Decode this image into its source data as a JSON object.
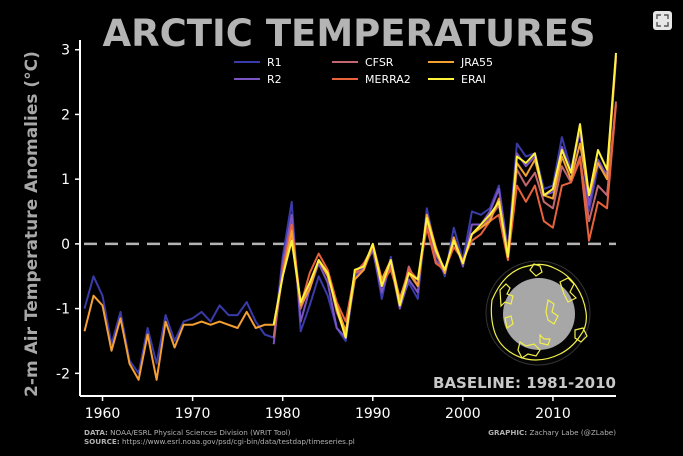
{
  "chart_data": {
    "type": "line",
    "title": "ARCTIC TEMPERATURES",
    "ylabel": "2-m Air Temperature Anomalies (°C)",
    "xlabel": "",
    "xlim": [
      1957.5,
      2017
    ],
    "ylim": [
      -2.35,
      3.15
    ],
    "xticks": [
      1960,
      1970,
      1980,
      1990,
      2000,
      2010
    ],
    "yticks": [
      -2,
      -1,
      0,
      1,
      2,
      3
    ],
    "zero_line": 0,
    "annotation": "BASELINE: 1981-2010",
    "legend": [
      "R1",
      "CFSR",
      "JRA55",
      "R2",
      "MERRA2",
      "ERAI"
    ],
    "series": [
      {
        "name": "R1",
        "color": "#3a3aa8",
        "x_start": 1958,
        "values": [
          -1.0,
          -0.5,
          -0.8,
          -1.55,
          -1.05,
          -1.8,
          -2.0,
          -1.3,
          -1.85,
          -1.1,
          -1.5,
          -1.2,
          -1.15,
          -1.05,
          -1.2,
          -0.95,
          -1.1,
          -1.1,
          -0.9,
          -1.2,
          -1.4,
          -1.45,
          -0.2,
          0.65,
          -1.35,
          -0.95,
          -0.5,
          -0.8,
          -1.3,
          -1.5,
          -0.5,
          -0.3,
          -0.05,
          -0.85,
          -0.2,
          -0.9,
          -0.6,
          -0.85,
          0.55,
          -0.1,
          -0.5,
          0.25,
          -0.25,
          0.5,
          0.45,
          0.55,
          0.9,
          -0.1,
          1.55,
          1.35,
          1.4,
          0.85,
          0.9,
          1.65,
          1.15,
          1.8,
          0.5,
          1.2,
          1.1,
          2.95
        ]
      },
      {
        "name": "R2",
        "color": "#7b54c4",
        "x_start": 1979,
        "values": [
          -1.55,
          -0.3,
          0.45,
          -1.2,
          -0.7,
          -0.3,
          -0.6,
          -1.3,
          -1.45,
          -0.55,
          -0.35,
          -0.1,
          -0.75,
          -0.3,
          -1.0,
          -0.55,
          -0.75,
          0.45,
          -0.25,
          -0.45,
          0.1,
          -0.35,
          0.3,
          0.3,
          0.5,
          0.85,
          -0.15,
          1.4,
          1.2,
          1.35,
          0.75,
          0.8,
          1.5,
          1.1,
          1.75,
          0.6,
          1.3,
          1.05,
          2.85
        ]
      },
      {
        "name": "CFSR",
        "color": "#c26670",
        "x_start": 1979,
        "values": [
          -1.45,
          -0.45,
          0.1,
          -1.0,
          -0.65,
          -0.25,
          -0.45,
          -1.05,
          -1.4,
          -0.45,
          -0.4,
          -0.05,
          -0.65,
          -0.35,
          -0.95,
          -0.35,
          -0.65,
          0.35,
          -0.15,
          -0.45,
          0.05,
          -0.3,
          0.15,
          0.25,
          0.4,
          0.6,
          -0.15,
          1.15,
          0.9,
          1.1,
          0.65,
          0.55,
          1.2,
          0.95,
          1.35,
          0.35,
          0.9,
          0.75,
          2.2
        ]
      },
      {
        "name": "MERRA2",
        "color": "#e8623c",
        "x_start": 1980,
        "values": [
          -0.4,
          0.3,
          -0.95,
          -0.45,
          -0.15,
          -0.4,
          -0.9,
          -1.2,
          -0.45,
          -0.3,
          -0.05,
          -0.6,
          -0.4,
          -0.85,
          -0.4,
          -0.55,
          0.25,
          -0.3,
          -0.4,
          -0.05,
          -0.25,
          0.05,
          0.15,
          0.35,
          0.45,
          -0.25,
          0.9,
          0.65,
          0.9,
          0.35,
          0.25,
          0.9,
          0.95,
          1.3,
          0.05,
          0.65,
          0.55,
          2.15
        ]
      },
      {
        "name": "JRA55",
        "color": "#f5a032",
        "x_start": 1958,
        "values": [
          -1.35,
          -0.8,
          -0.95,
          -1.65,
          -1.15,
          -1.85,
          -2.1,
          -1.4,
          -2.1,
          -1.2,
          -1.6,
          -1.25,
          -1.25,
          -1.2,
          -1.25,
          -1.2,
          -1.25,
          -1.3,
          -1.05,
          -1.3,
          -1.25,
          -1.25,
          -0.5,
          0.2,
          -0.95,
          -0.7,
          -0.25,
          -0.5,
          -0.95,
          -1.35,
          -0.55,
          -0.4,
          0.0,
          -0.55,
          -0.25,
          -0.85,
          -0.45,
          -0.65,
          0.45,
          -0.05,
          -0.45,
          0.1,
          -0.3,
          0.15,
          0.25,
          0.35,
          0.7,
          -0.2,
          1.25,
          1.05,
          1.3,
          0.75,
          0.7,
          1.35,
          1.0,
          1.55,
          0.75,
          1.25,
          1.0,
          2.9
        ]
      },
      {
        "name": "ERAI",
        "color": "#fff23c",
        "x_start": 1979,
        "values": [
          -1.25,
          -0.5,
          0.05,
          -0.9,
          -0.6,
          -0.25,
          -0.45,
          -1.0,
          -1.45,
          -0.4,
          -0.35,
          0.0,
          -0.65,
          -0.25,
          -0.95,
          -0.45,
          -0.55,
          0.4,
          -0.1,
          -0.4,
          0.05,
          -0.3,
          0.15,
          0.3,
          0.45,
          0.65,
          -0.2,
          1.35,
          1.25,
          1.4,
          0.75,
          0.85,
          1.45,
          1.1,
          1.85,
          0.75,
          1.45,
          1.15,
          2.95
        ]
      }
    ]
  },
  "footer": {
    "data_label": "DATA:",
    "data_text": " NOAA/ESRL Physical Sciences Division (WRIT Tool)",
    "source_label": "SOURCE:",
    "source_text": " https://www.esrl.noaa.gov/psd/cgi-bin/data/testdap/timeseries.pl",
    "graphic_label": "GRAPHIC:",
    "graphic_text": " Zachary Labe (@ZLabe)"
  },
  "controls": {
    "expand_icon": "expand-icon"
  }
}
